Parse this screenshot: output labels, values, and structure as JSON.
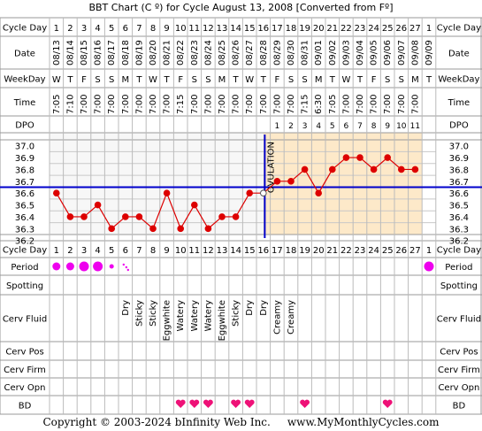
{
  "title": "BBT Chart (C º) for Cycle August 13, 2008  [Converted from Fº]",
  "footer": "Copyright © 2003-2024 bInfinity Web Inc.     www.MyMonthlyCycles.com",
  "row_labels": {
    "cycle_day": "Cycle Day",
    "date": "Date",
    "weekday": "WeekDay",
    "time": "Time",
    "dpo": "DPO",
    "period": "Period",
    "spotting": "Spotting",
    "cerv_fluid": "Cerv Fluid",
    "cerv_pos": "Cerv Pos",
    "cerv_firm": "Cerv Firm",
    "cerv_opn": "Cerv Opn",
    "bd": "BD"
  },
  "ovulation_label": "OVULATION",
  "colors": {
    "line": "#dd0000",
    "coverline": "#0000cc",
    "ovulation": "#0000cc",
    "luteal_bg": "#fde9c9",
    "follicular_bg": "#f7f7f7",
    "grid": "#c8c8c8",
    "period": "#ee00ee",
    "bd": "#ee1177"
  },
  "chart_data": {
    "type": "line",
    "cycle_days": [
      1,
      2,
      3,
      4,
      5,
      6,
      7,
      8,
      9,
      10,
      11,
      12,
      13,
      14,
      15,
      16,
      17,
      18,
      19,
      20,
      21,
      22,
      23,
      24,
      25,
      26,
      27,
      1
    ],
    "dates": [
      "08/13",
      "08/14",
      "08/15",
      "08/16",
      "08/17",
      "08/18",
      "08/19",
      "08/20",
      "08/21",
      "08/22",
      "08/23",
      "08/24",
      "08/25",
      "08/26",
      "08/27",
      "08/28",
      "08/29",
      "08/30",
      "08/31",
      "09/01",
      "09/02",
      "09/03",
      "09/04",
      "09/05",
      "09/06",
      "09/07",
      "09/08",
      "09/09"
    ],
    "weekdays": [
      "W",
      "T",
      "F",
      "S",
      "S",
      "M",
      "T",
      "W",
      "T",
      "F",
      "S",
      "S",
      "M",
      "T",
      "W",
      "T",
      "F",
      "S",
      "S",
      "M",
      "T",
      "W",
      "T",
      "F",
      "S",
      "S",
      "M",
      "T"
    ],
    "times": [
      "7:05",
      "7:10",
      "7:00",
      "7:00",
      "7:00",
      "7:00",
      "7:00",
      "7:00",
      "7:00",
      "7:15",
      "7:00",
      "7:00",
      "7:00",
      "7:00",
      "7:00",
      "7:00",
      "7:00",
      "7:00",
      "7:15",
      "6:30",
      "7:05",
      "7:00",
      "7:00",
      "7:00",
      "7:00",
      "7:00",
      "7:00",
      ""
    ],
    "dpo": [
      "",
      "",
      "",
      "",
      "",
      "",
      "",
      "",
      "",
      "",
      "",
      "",
      "",
      "",
      "",
      "",
      "1",
      "2",
      "3",
      "4",
      "5",
      "6",
      "7",
      "8",
      "9",
      "10",
      "11",
      ""
    ],
    "temps": [
      36.6,
      36.4,
      36.4,
      36.5,
      36.3,
      36.4,
      36.4,
      36.3,
      36.6,
      36.3,
      36.5,
      36.3,
      36.4,
      36.4,
      36.6,
      36.6,
      36.7,
      36.7,
      36.8,
      36.6,
      36.8,
      36.9,
      36.9,
      36.8,
      36.9,
      36.8,
      36.8,
      null
    ],
    "y_ticks": [
      "37.0",
      "36.9",
      "36.8",
      "36.7",
      "36.6",
      "36.5",
      "36.4",
      "36.3",
      "36.2"
    ],
    "ylim": [
      36.2,
      37.0
    ],
    "coverline": 36.65,
    "ovulation_day": 16,
    "period": [
      2,
      2,
      3,
      3,
      1,
      0.5,
      0,
      0,
      0,
      0,
      0,
      0,
      0,
      0,
      0,
      0,
      0,
      0,
      0,
      0,
      0,
      0,
      0,
      0,
      0,
      0,
      0,
      3
    ],
    "spotting": [
      "",
      "",
      "",
      "",
      "",
      "",
      "",
      "",
      "",
      "",
      "",
      "",
      "",
      "",
      "",
      "",
      "",
      "",
      "",
      "",
      "",
      "",
      "",
      "",
      "",
      "",
      "",
      ""
    ],
    "cerv_fluid": [
      "",
      "",
      "",
      "",
      "",
      "Dry",
      "Sticky",
      "Sticky",
      "Eggwhite",
      "Watery",
      "Watery",
      "Watery",
      "Eggwhite",
      "Sticky",
      "Dry",
      "Dry",
      "Creamy",
      "Creamy",
      "",
      "",
      "",
      "",
      "",
      "",
      "",
      "",
      "",
      ""
    ],
    "cerv_pos": [
      "",
      "",
      "",
      "",
      "",
      "",
      "",
      "",
      "",
      "",
      "",
      "",
      "",
      "",
      "",
      "",
      "",
      "",
      "",
      "",
      "",
      "",
      "",
      "",
      "",
      "",
      "",
      ""
    ],
    "cerv_firm": [
      "",
      "",
      "",
      "",
      "",
      "",
      "",
      "",
      "",
      "",
      "",
      "",
      "",
      "",
      "",
      "",
      "",
      "",
      "",
      "",
      "",
      "",
      "",
      "",
      "",
      "",
      "",
      ""
    ],
    "cerv_opn": [
      "",
      "",
      "",
      "",
      "",
      "",
      "",
      "",
      "",
      "",
      "",
      "",
      "",
      "",
      "",
      "",
      "",
      "",
      "",
      "",
      "",
      "",
      "",
      "",
      "",
      "",
      "",
      ""
    ],
    "bd": [
      0,
      0,
      0,
      0,
      0,
      0,
      0,
      0,
      0,
      1,
      1,
      1,
      0,
      1,
      1,
      0,
      0,
      0,
      1,
      0,
      0,
      0,
      0,
      0,
      1,
      0,
      0,
      0
    ]
  }
}
